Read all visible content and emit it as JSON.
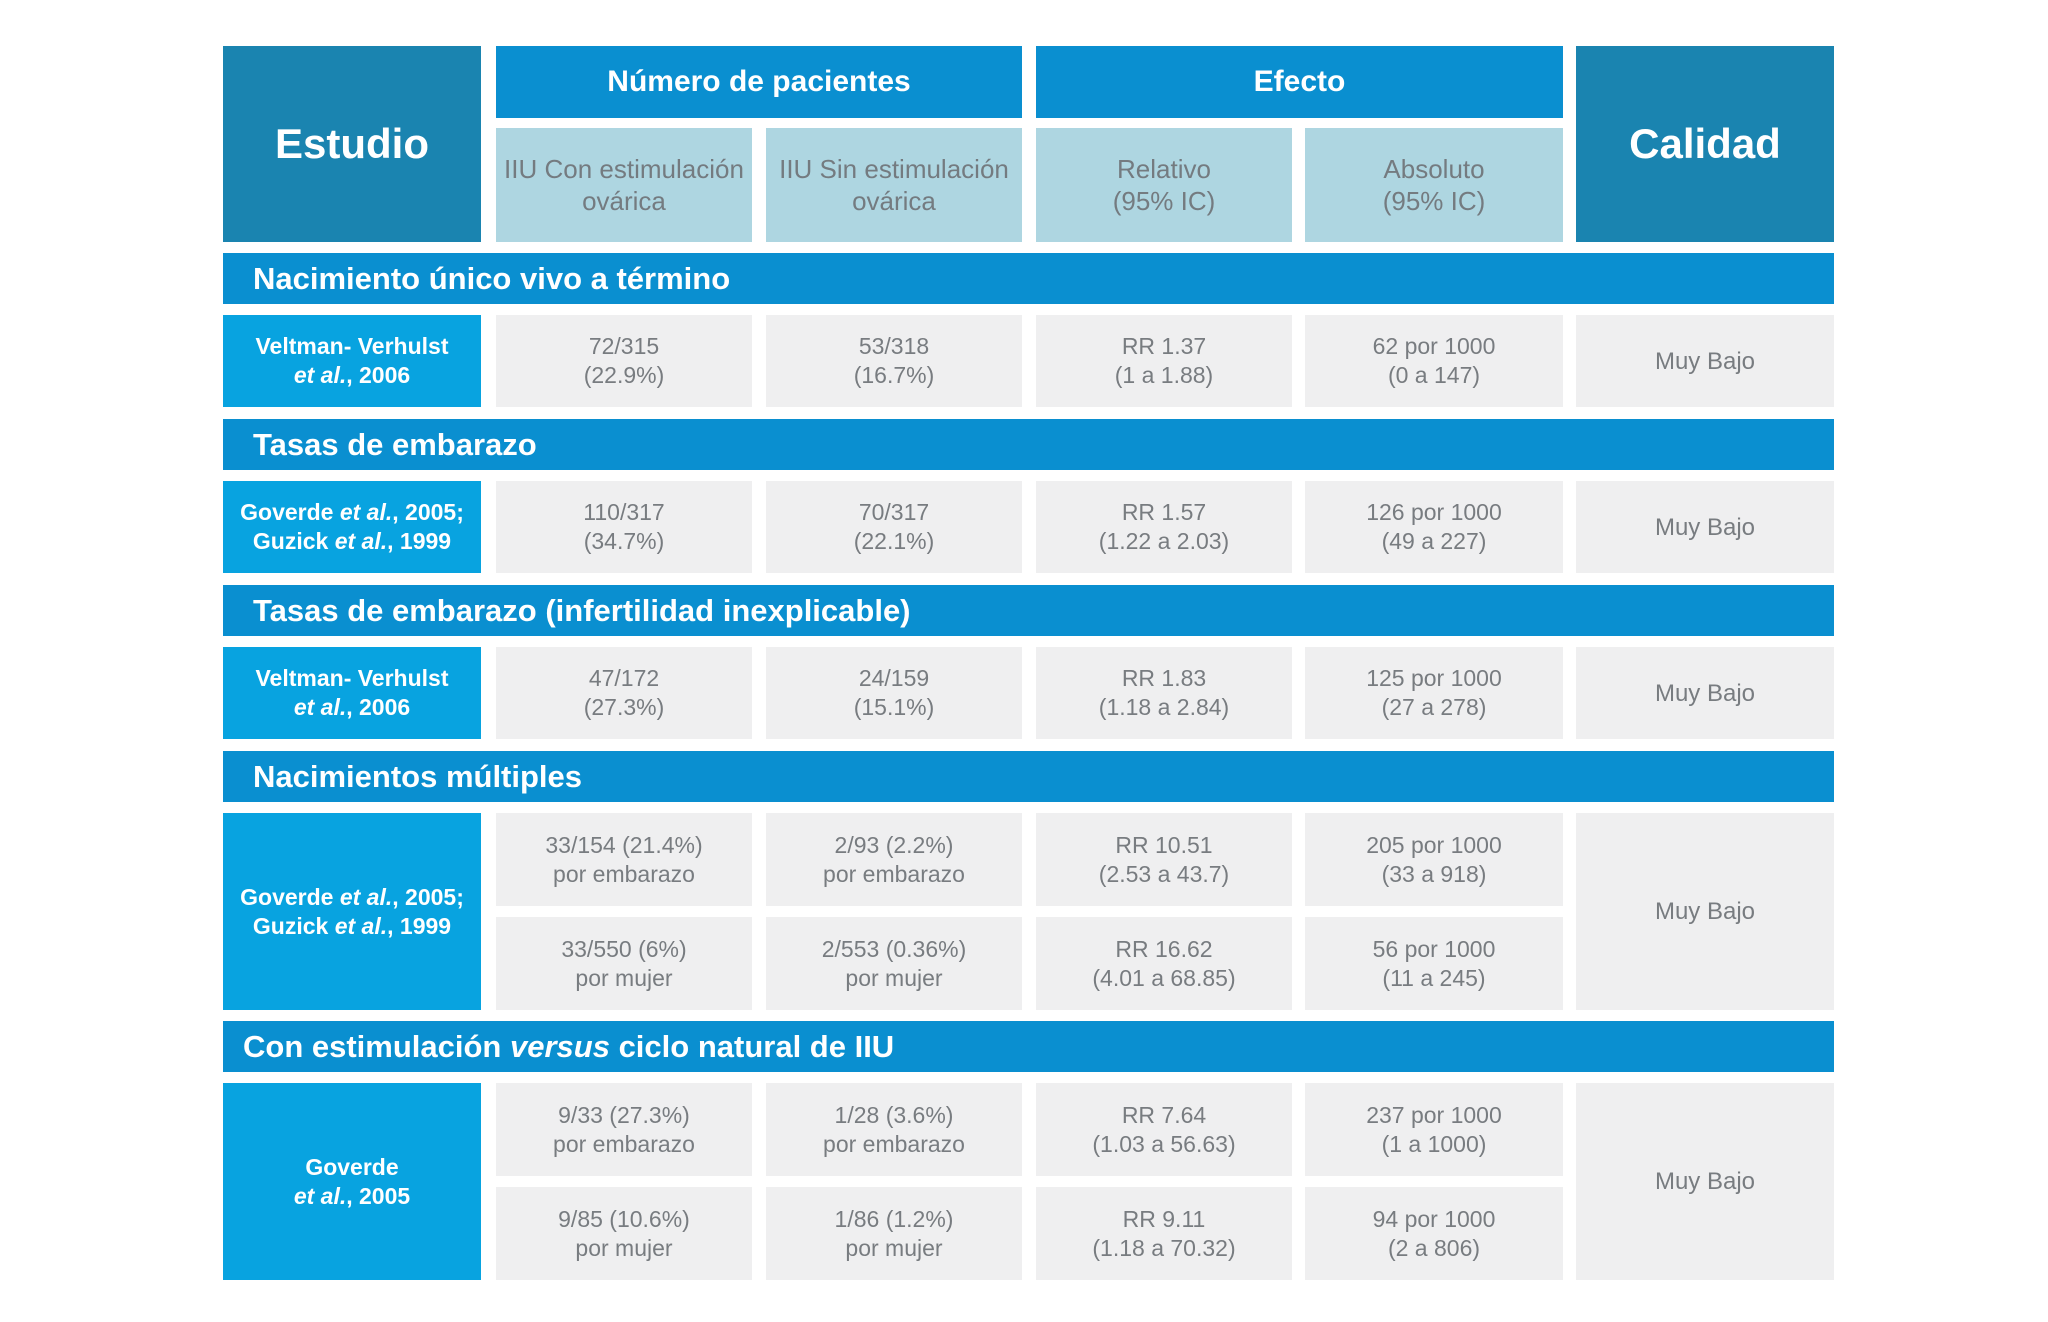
{
  "header": {
    "estudio": "Estudio",
    "numero_pacientes": "Número de pacientes",
    "efecto": "Efecto",
    "calidad": "Calidad",
    "con_estimulacion": [
      "IIU Con estimulación",
      "ovárica"
    ],
    "sin_estimulacion": [
      "IIU Sin estimulación",
      "ovárica"
    ],
    "relativo": [
      "Relativo",
      "(95% IC)"
    ],
    "absoluto": [
      "Absoluto",
      "(95% IC)"
    ]
  },
  "sections": [
    {
      "title": "Nacimiento único vivo a término",
      "study": [
        [
          {
            "t": "Veltman- Verhulst",
            "i": false
          }
        ],
        [
          {
            "t": "et al.",
            "i": true
          },
          {
            "t": ", 2006",
            "i": false
          }
        ]
      ],
      "quality": "Muy Bajo",
      "rows": [
        {
          "con": [
            "72/315",
            "(22.9%)"
          ],
          "sin": [
            "53/318",
            "(16.7%)"
          ],
          "rel": [
            "RR 1.37",
            "(1 a 1.88)"
          ],
          "abs": [
            "62 por 1000",
            "(0 a 147)"
          ]
        }
      ]
    },
    {
      "title": "Tasas de embarazo",
      "study": [
        [
          {
            "t": "Goverde ",
            "i": false
          },
          {
            "t": "et al.",
            "i": true
          },
          {
            "t": ", 2005;",
            "i": false
          }
        ],
        [
          {
            "t": "Guzick ",
            "i": false
          },
          {
            "t": "et al.",
            "i": true
          },
          {
            "t": ", 1999",
            "i": false
          }
        ]
      ],
      "quality": "Muy Bajo",
      "rows": [
        {
          "con": [
            "110/317",
            "(34.7%)"
          ],
          "sin": [
            "70/317",
            "(22.1%)"
          ],
          "rel": [
            "RR 1.57",
            "(1.22 a 2.03)"
          ],
          "abs": [
            "126 por 1000",
            "(49 a 227)"
          ]
        }
      ]
    },
    {
      "title": "Tasas de embarazo (infertilidad inexplicable)",
      "study": [
        [
          {
            "t": "Veltman- Verhulst",
            "i": false
          }
        ],
        [
          {
            "t": "et al.",
            "i": true
          },
          {
            "t": ", 2006",
            "i": false
          }
        ]
      ],
      "quality": "Muy Bajo",
      "rows": [
        {
          "con": [
            "47/172",
            "(27.3%)"
          ],
          "sin": [
            "24/159",
            "(15.1%)"
          ],
          "rel": [
            "RR 1.83",
            "(1.18 a 2.84)"
          ],
          "abs": [
            "125 por 1000",
            "(27 a 278)"
          ]
        }
      ]
    },
    {
      "title": "Nacimientos múltiples",
      "study": [
        [
          {
            "t": "Goverde ",
            "i": false
          },
          {
            "t": "et al.",
            "i": true
          },
          {
            "t": ", 2005;",
            "i": false
          }
        ],
        [
          {
            "t": "Guzick ",
            "i": false
          },
          {
            "t": "et al.",
            "i": true
          },
          {
            "t": ", 1999",
            "i": false
          }
        ]
      ],
      "quality": "Muy Bajo",
      "rows": [
        {
          "con": [
            "33/154 (21.4%)",
            "por embarazo"
          ],
          "sin": [
            "2/93 (2.2%)",
            "por embarazo"
          ],
          "rel": [
            "RR 10.51",
            "(2.53 a 43.7)"
          ],
          "abs": [
            "205 por 1000",
            "(33 a 918)"
          ]
        },
        {
          "con": [
            "33/550 (6%)",
            "por mujer"
          ],
          "sin": [
            "2/553 (0.36%)",
            "por mujer"
          ],
          "rel": [
            "RR 16.62",
            "(4.01  a 68.85)"
          ],
          "abs": [
            "56 por 1000",
            "(11 a 245)"
          ]
        }
      ]
    },
    {
      "title_parts": [
        {
          "t": "Con estimulación ",
          "i": false
        },
        {
          "t": "versus",
          "i": true
        },
        {
          "t": " ciclo natural de IIU",
          "i": false
        }
      ],
      "study": [
        [
          {
            "t": "Goverde",
            "i": false
          }
        ],
        [
          {
            "t": "et al.",
            "i": true
          },
          {
            "t": ", 2005",
            "i": false
          }
        ]
      ],
      "quality": "Muy Bajo",
      "rows": [
        {
          "con": [
            "9/33 (27.3%)",
            "por embarazo"
          ],
          "sin": [
            "1/28 (3.6%)",
            "por embarazo"
          ],
          "rel": [
            "RR 7.64",
            "(1.03 a 56.63)"
          ],
          "abs": [
            "237 por 1000",
            "(1 a 1000)"
          ]
        },
        {
          "con": [
            "9/85 (10.6%)",
            "por mujer"
          ],
          "sin": [
            "1/86 (1.2%)",
            "por mujer"
          ],
          "rel": [
            "RR 9.11",
            "(1.18 a 70.32)"
          ],
          "abs": [
            "94 por 1000",
            "(2 a 806)"
          ]
        }
      ]
    }
  ]
}
